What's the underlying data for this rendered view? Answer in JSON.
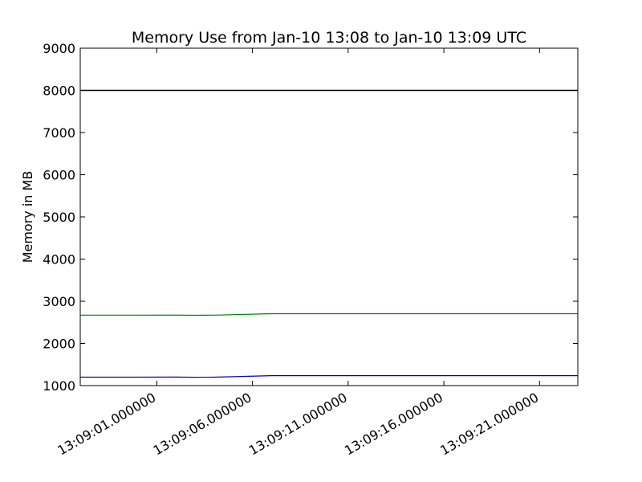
{
  "chart_data": {
    "type": "line",
    "title": "Memory Use from Jan-10 13:08 to Jan-10 13:09 UTC",
    "xlabel": "",
    "ylabel": "Memory in MB",
    "xlim": [
      "13:08:57",
      "13:09:23"
    ],
    "ylim": [
      1000,
      9000
    ],
    "yticks": [
      1000,
      2000,
      3000,
      4000,
      5000,
      6000,
      7000,
      8000,
      9000
    ],
    "xticks": [
      {
        "value": "13:09:01",
        "label": "13:09:01.000000"
      },
      {
        "value": "13:09:06",
        "label": "13:09:06.000000"
      },
      {
        "value": "13:09:11",
        "label": "13:09:11.000000"
      },
      {
        "value": "13:09:16",
        "label": "13:09:16.000000"
      },
      {
        "value": "13:09:21",
        "label": "13:09:21.000000"
      }
    ],
    "grid": false,
    "series": [
      {
        "color": "#000000",
        "x": [
          "13:08:57",
          "13:09:23"
        ],
        "y": [
          8000,
          8000
        ]
      },
      {
        "color": "#008000",
        "x": [
          "13:08:57",
          "13:09:00",
          "13:09:02",
          "13:09:03",
          "13:09:04",
          "13:09:07",
          "13:09:10",
          "13:09:13",
          "13:09:16",
          "13:09:19",
          "13:09:23"
        ],
        "y": [
          2670,
          2670,
          2672,
          2668,
          2670,
          2705,
          2705,
          2705,
          2705,
          2705,
          2705
        ]
      },
      {
        "color": "#0000bf",
        "x": [
          "13:08:57",
          "13:09:00",
          "13:09:02",
          "13:09:03",
          "13:09:04",
          "13:09:07",
          "13:09:10",
          "13:09:13",
          "13:09:16",
          "13:09:19",
          "13:09:23"
        ],
        "y": [
          1200,
          1200,
          1203,
          1198,
          1200,
          1235,
          1235,
          1235,
          1235,
          1235,
          1235
        ]
      }
    ]
  }
}
